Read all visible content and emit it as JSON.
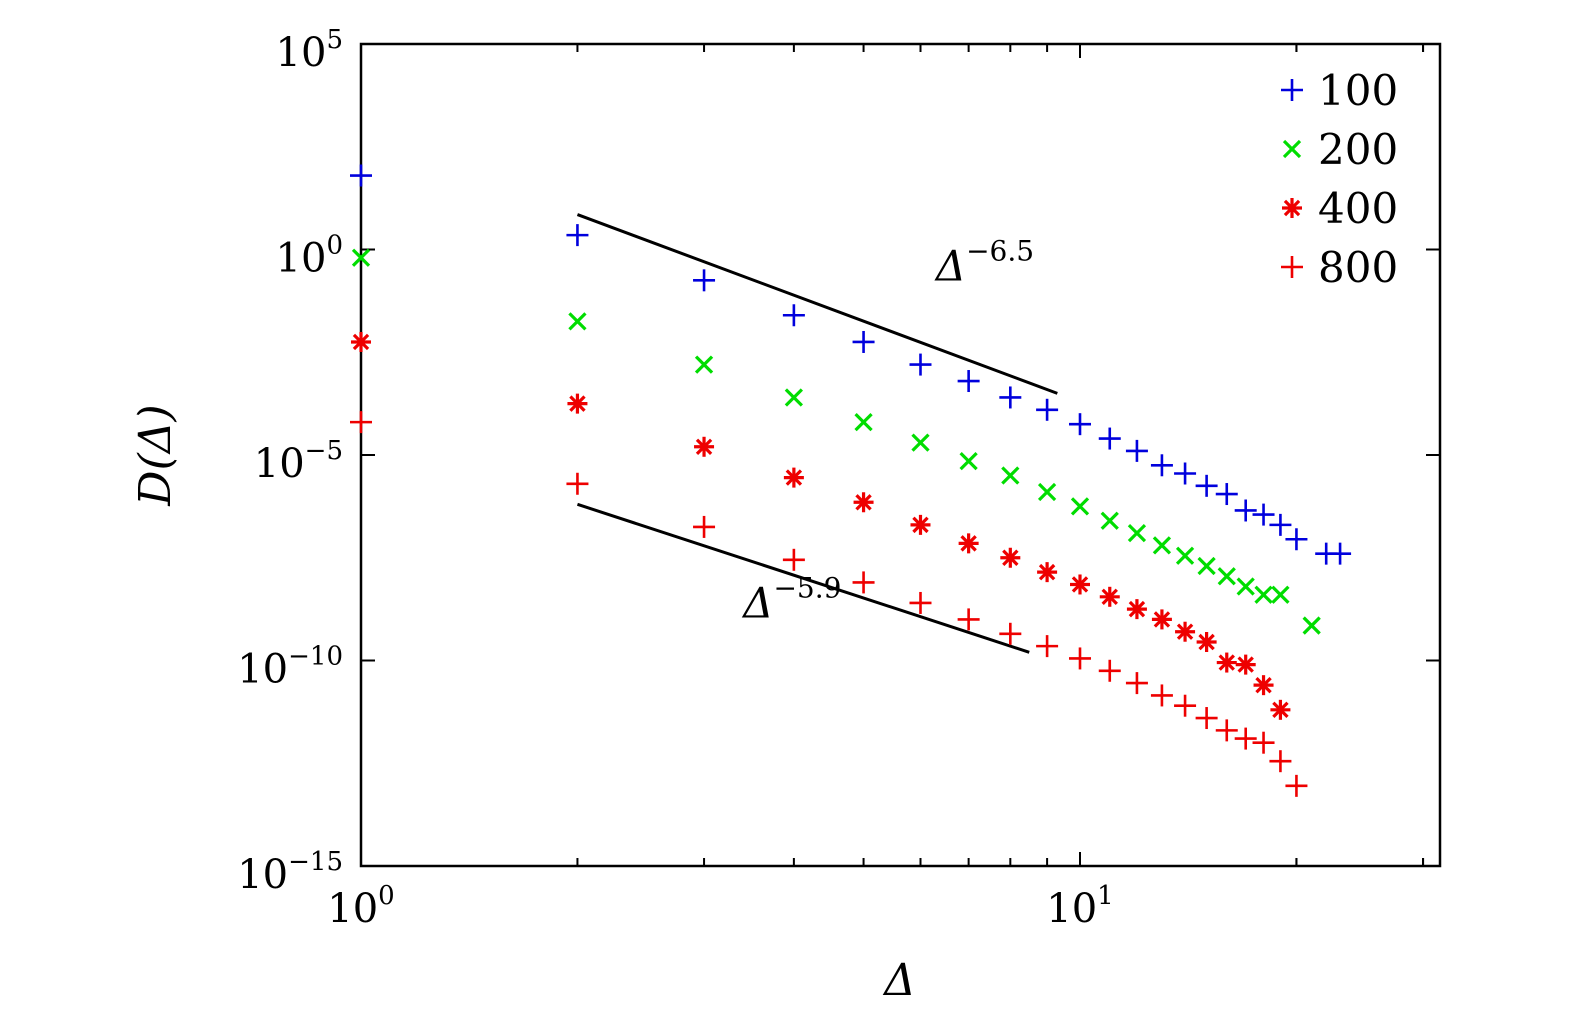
{
  "chart_data": {
    "type": "scatter",
    "title": "",
    "xlabel": "Δ",
    "ylabel": "D(Δ)",
    "xscale": "log",
    "yscale": "log",
    "xlim": [
      1,
      30
    ],
    "ylim_exponent": [
      -15,
      5
    ],
    "x_ticks": [
      {
        "base": "10",
        "exp": "0",
        "value": 1
      },
      {
        "base": "10",
        "exp": "1",
        "value": 10
      }
    ],
    "y_ticks": [
      {
        "base": "10",
        "exp": "5",
        "value_exp": 5
      },
      {
        "base": "10",
        "exp": "0",
        "value_exp": 0
      },
      {
        "base": "10",
        "exp": "−5",
        "value_exp": -5
      },
      {
        "base": "10",
        "exp": "−10",
        "value_exp": -10
      },
      {
        "base": "10",
        "exp": "−15",
        "value_exp": -15
      }
    ],
    "grid": false,
    "legend_position": "top-right",
    "series": [
      {
        "name": "100",
        "marker": "plus",
        "color": "#0000dd",
        "x": [
          1,
          2,
          3,
          4,
          5,
          6,
          7,
          8,
          9,
          10,
          11,
          12,
          13,
          14,
          15,
          16,
          17,
          18,
          19,
          20,
          22,
          23
        ],
        "log10_y": [
          1.8,
          0.35,
          -0.75,
          -1.6,
          -2.25,
          -2.8,
          -3.2,
          -3.6,
          -3.9,
          -4.25,
          -4.6,
          -4.9,
          -5.25,
          -5.45,
          -5.75,
          -5.95,
          -6.35,
          -6.45,
          -6.7,
          -7.05,
          -7.4,
          -7.4
        ]
      },
      {
        "name": "200",
        "marker": "x",
        "color": "#00dd00",
        "x": [
          1,
          2,
          3,
          4,
          5,
          6,
          7,
          8,
          9,
          10,
          11,
          12,
          13,
          14,
          15,
          16,
          17,
          18,
          19,
          21
        ],
        "log10_y": [
          -0.2,
          -1.75,
          -2.8,
          -3.6,
          -4.2,
          -4.7,
          -5.15,
          -5.5,
          -5.9,
          -6.25,
          -6.6,
          -6.9,
          -7.2,
          -7.45,
          -7.7,
          -7.95,
          -8.2,
          -8.4,
          -8.4,
          -9.15
        ]
      },
      {
        "name": "400",
        "marker": "asterisk",
        "color": "#ee0000",
        "x": [
          1,
          2,
          3,
          4,
          5,
          6,
          7,
          8,
          9,
          10,
          11,
          12,
          13,
          14,
          15,
          16,
          17,
          18,
          19
        ],
        "log10_y": [
          -2.25,
          -3.75,
          -4.8,
          -5.55,
          -6.15,
          -6.7,
          -7.15,
          -7.5,
          -7.85,
          -8.15,
          -8.45,
          -8.75,
          -9.0,
          -9.3,
          -9.55,
          -10.05,
          -10.1,
          -10.6,
          -11.2
        ]
      },
      {
        "name": "800",
        "marker": "plus",
        "color": "#ee0000",
        "x": [
          1,
          2,
          3,
          4,
          5,
          6,
          7,
          8,
          9,
          10,
          11,
          12,
          13,
          14,
          15,
          16,
          17,
          18,
          19,
          20
        ],
        "log10_y": [
          -4.2,
          -5.7,
          -6.75,
          -7.55,
          -8.1,
          -8.6,
          -9.0,
          -9.35,
          -9.65,
          -9.95,
          -10.25,
          -10.55,
          -10.85,
          -11.1,
          -11.4,
          -11.7,
          -11.9,
          -12.0,
          -12.45,
          -13.05
        ]
      }
    ],
    "reference_lines": [
      {
        "label_base": "Δ",
        "label_exp": "−6.5",
        "x": [
          2,
          9.3
        ],
        "log10_y": [
          0.85,
          -3.5
        ],
        "label_anchor_x": 6.3,
        "label_anchor_log10_y": -0.75
      },
      {
        "label_base": "Δ",
        "label_exp": "−5.9",
        "x": [
          2,
          8.5
        ],
        "log10_y": [
          -6.2,
          -9.8
        ],
        "label_anchor_x": 3.4,
        "label_anchor_log10_y": -8.95
      }
    ]
  }
}
